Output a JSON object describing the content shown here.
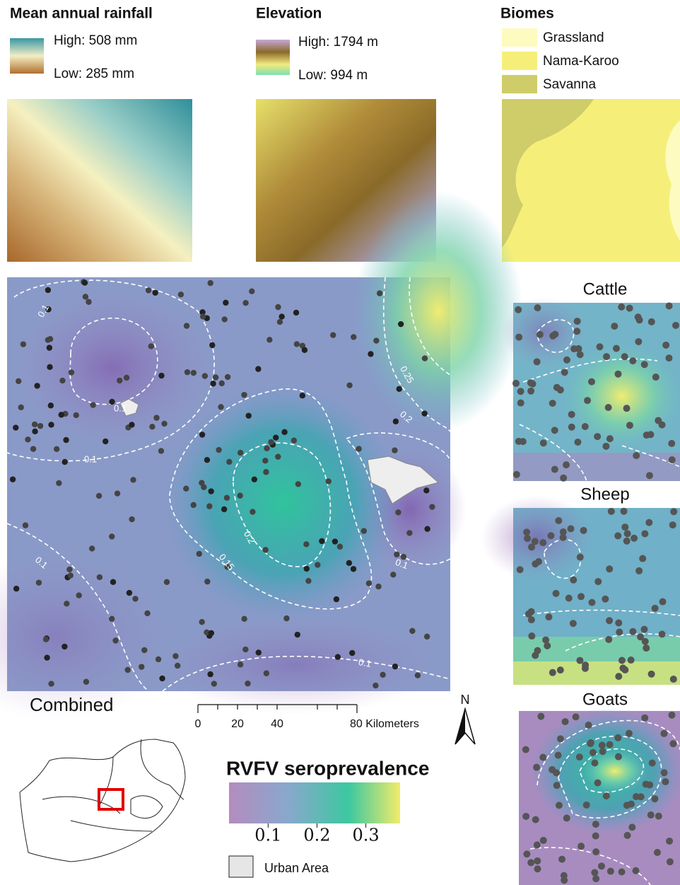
{
  "panels": {
    "rainfall": {
      "title": "Mean annual rainfall",
      "high": "High: 508 mm",
      "low": "Low: 285 mm"
    },
    "elevation": {
      "title": "Elevation",
      "high": "High: 1794 m",
      "low": "Low: 994 m"
    },
    "biomes": {
      "title": "Biomes",
      "items": [
        "Grassland",
        "Nama-Karoo",
        "Savanna"
      ]
    }
  },
  "combined": {
    "label": "Combined",
    "contour_labels": [
      "0.1",
      "0.1",
      "0.1",
      "0.15",
      "0.2",
      "0.25",
      "0.2",
      "0.1",
      "0.1",
      "0.1"
    ]
  },
  "scale_bar": {
    "ticks": [
      "0",
      "20",
      "40",
      "80 Kilometers"
    ]
  },
  "north": "N",
  "legend": {
    "title": "RVFV seroprevalence",
    "ticks": [
      0.1,
      0.2,
      0.3
    ],
    "urban": "Urban Area"
  },
  "species": [
    "Cattle",
    "Sheep",
    "Goats"
  ]
}
